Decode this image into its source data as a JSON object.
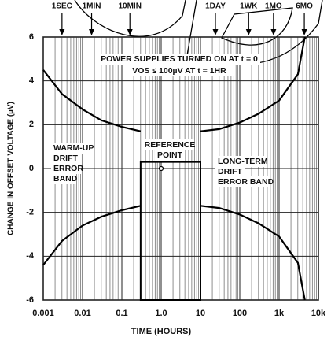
{
  "chart_data": {
    "type": "line",
    "xlabel": "TIME (HOURS)",
    "ylabel": "CHANGE IN OFFSET VOLTAGE (µV)",
    "xscale": "log",
    "xlim": [
      0.001,
      10000
    ],
    "xticks": [
      0.001,
      0.01,
      0.1,
      {
        "value": 1,
        "label": "1.0"
      },
      10,
      100,
      {
        "value": 1000,
        "label": "1k"
      },
      {
        "value": 10000,
        "label": "10k"
      }
    ],
    "ylim": [
      -6,
      6
    ],
    "yticks": [
      6,
      4,
      2,
      0,
      -2,
      -4,
      -6
    ],
    "grid": true,
    "series": [
      {
        "name": null,
        "color": "#000000",
        "x": [
          0.001,
          0.003,
          0.01,
          0.03,
          0.1,
          0.3
        ],
        "values": [
          4.5,
          3.4,
          2.7,
          2.2,
          1.9,
          1.7
        ]
      },
      {
        "name": null,
        "color": "#000000",
        "x": [
          0.001,
          0.003,
          0.01,
          0.03,
          0.1,
          0.3
        ],
        "values": [
          -4.4,
          -3.3,
          -2.6,
          -2.2,
          -1.9,
          -1.7
        ]
      },
      {
        "name": null,
        "color": "#000000",
        "x": [
          10,
          30,
          100,
          300,
          1000,
          3000,
          4500
        ],
        "values": [
          1.7,
          1.8,
          2.1,
          2.5,
          3.1,
          4.3,
          6
        ]
      },
      {
        "name": null,
        "color": "#000000",
        "x": [
          10,
          30,
          100,
          300,
          1000,
          3000,
          4500
        ],
        "values": [
          -1.7,
          -1.8,
          -2.1,
          -2.5,
          -3.1,
          -4.3,
          -6
        ]
      }
    ],
    "reference_region": {
      "x": [
        0.3,
        10
      ],
      "y": 0.3
    },
    "reference_point": {
      "x": 1,
      "y": 0
    },
    "time_markers": [
      {
        "label": "1SEC",
        "x": 0.003
      },
      {
        "label": "1MIN",
        "x": 0.017
      },
      {
        "label": "10MIN",
        "x": 0.16
      },
      {
        "label": "1DAY",
        "x": 24
      },
      {
        "label": "1WK",
        "x": 168
      },
      {
        "label": "1MO",
        "x": 720
      },
      {
        "label": "6MO",
        "x": 4380
      }
    ],
    "annotations": {
      "supplies": [
        "POWER SUPPLIES TURNED ON AT t = 0",
        "VOS ≤ 100µV AT t = 1HR"
      ],
      "warmup": [
        "WARM-UP",
        "DRIFT",
        "ERROR",
        "BAND"
      ],
      "reference": [
        "REFERENCE",
        "POINT"
      ],
      "longterm": [
        "LONG-TERM",
        "DRIFT",
        "ERROR BAND"
      ]
    }
  }
}
